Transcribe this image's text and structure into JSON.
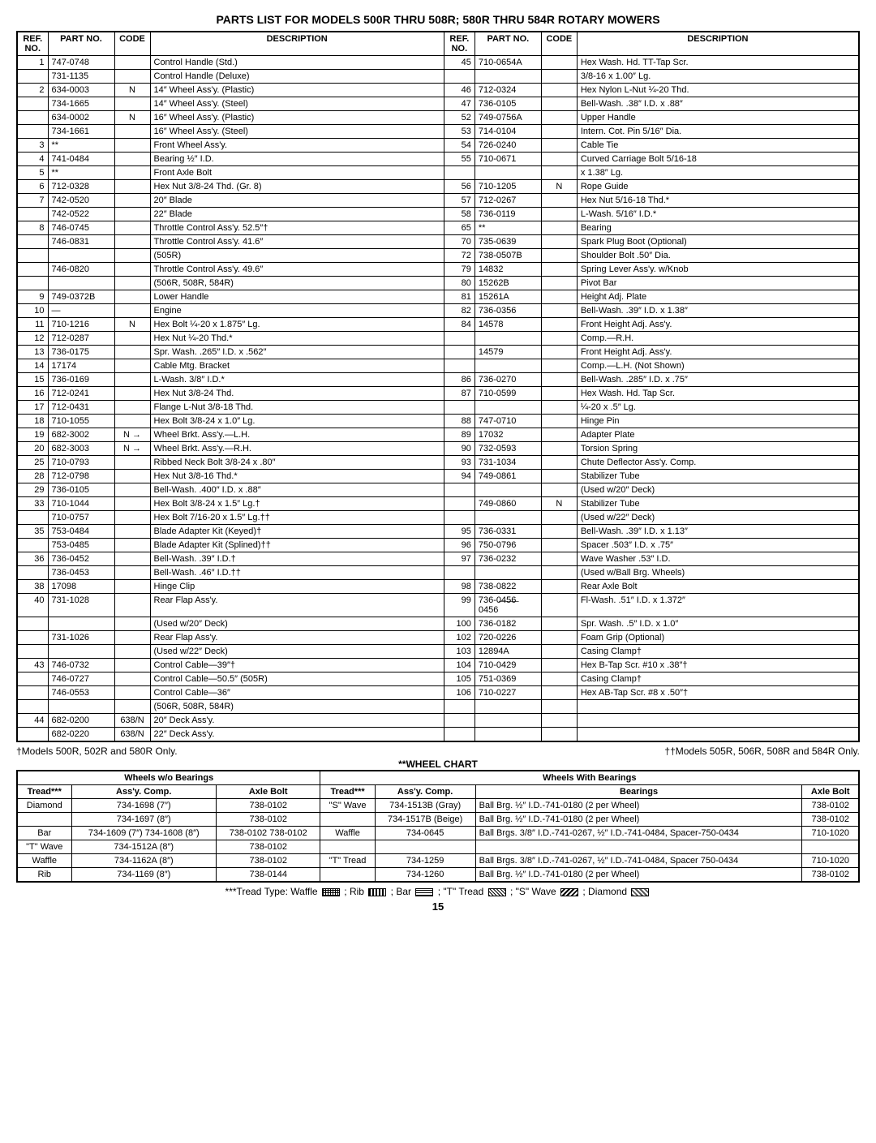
{
  "title": "PARTS LIST FOR MODELS 500R THRU 508R; 580R THRU 584R ROTARY MOWERS",
  "headers": {
    "ref": "REF. NO.",
    "part": "PART NO.",
    "code": "CODE",
    "desc": "DESCRIPTION"
  },
  "left_rows": [
    {
      "r": "1",
      "p": "747-0748",
      "c": "",
      "d": "Control Handle (Std.)"
    },
    {
      "r": "",
      "p": "731-1135",
      "c": "",
      "d": "Control Handle (Deluxe)"
    },
    {
      "r": "2",
      "p": "634-0003",
      "c": "N",
      "d": "14″ Wheel Ass'y. (Plastic)"
    },
    {
      "r": "",
      "p": "734-1665",
      "c": "",
      "d": "14″ Wheel Ass'y. (Steel)"
    },
    {
      "r": "",
      "p": "634-0002",
      "c": "N",
      "d": "16″ Wheel Ass'y. (Plastic)"
    },
    {
      "r": "",
      "p": "734-1661",
      "c": "",
      "d": "16″ Wheel Ass'y. (Steel)"
    },
    {
      "r": "3",
      "p": "**",
      "c": "",
      "d": "Front Wheel Ass'y."
    },
    {
      "r": "4",
      "p": "741-0484",
      "c": "",
      "d": "Bearing ½″ I.D."
    },
    {
      "r": "5",
      "p": "**",
      "c": "",
      "d": "Front Axle Bolt"
    },
    {
      "r": "6",
      "p": "712-0328",
      "c": "",
      "d": "Hex Nut 3/8-24 Thd. (Gr. 8)"
    },
    {
      "r": "7",
      "p": "742-0520",
      "c": "",
      "d": "20″ Blade"
    },
    {
      "r": "",
      "p": "742-0522",
      "c": "",
      "d": "22″ Blade"
    },
    {
      "r": "8",
      "p": "746-0745",
      "c": "",
      "d": "Throttle Control Ass'y. 52.5″†"
    },
    {
      "r": "",
      "p": "746-0831",
      "c": "",
      "d": "Throttle Control Ass'y. 41.6″"
    },
    {
      "r": "",
      "p": "",
      "c": "",
      "d": "(505R)"
    },
    {
      "r": "",
      "p": "746-0820",
      "c": "",
      "d": "Throttle Control Ass'y. 49.6″"
    },
    {
      "r": "",
      "p": "",
      "c": "",
      "d": "(506R, 508R, 584R)"
    },
    {
      "r": "9",
      "p": "749-0372B",
      "c": "",
      "d": "Lower Handle"
    },
    {
      "r": "10",
      "p": "—",
      "c": "",
      "d": "Engine"
    },
    {
      "r": "11",
      "p": "710-1216",
      "c": "N",
      "d": "Hex Bolt ¼-20 x 1.875″ Lg."
    },
    {
      "r": "12",
      "p": "712-0287",
      "c": "",
      "d": "Hex Nut ¼-20 Thd.*"
    },
    {
      "r": "13",
      "p": "736-0175",
      "c": "",
      "d": "Spr. Wash. .265″ I.D. x .562″"
    },
    {
      "r": "14",
      "p": "17174",
      "c": "",
      "d": "Cable Mtg. Bracket"
    },
    {
      "r": "15",
      "p": "736-0169",
      "c": "",
      "d": "L-Wash. 3/8″ I.D.*"
    },
    {
      "r": "16",
      "p": "712-0241",
      "c": "",
      "d": "Hex Nut 3/8-24 Thd."
    },
    {
      "r": "17",
      "p": "712-0431",
      "c": "",
      "d": "Flange L-Nut 3/8-18 Thd."
    },
    {
      "r": "18",
      "p": "710-1055",
      "c": "",
      "d": "Hex Bolt 3/8-24 x 1.0″ Lg."
    },
    {
      "r": "19",
      "p": "682-3002",
      "c": "N →",
      "d": "Wheel Brkt. Ass'y.—L.H."
    },
    {
      "r": "20",
      "p": "682-3003",
      "c": "N →",
      "d": "Wheel Brkt. Ass'y.—R.H."
    },
    {
      "r": "25",
      "p": "710-0793",
      "c": "",
      "d": "Ribbed Neck Bolt 3/8-24 x .80″"
    },
    {
      "r": "28",
      "p": "712-0798",
      "c": "",
      "d": "Hex Nut 3/8-16 Thd.*"
    },
    {
      "r": "29",
      "p": "736-0105",
      "c": "",
      "d": "Bell-Wash. .400″ I.D. x .88″"
    },
    {
      "r": "33",
      "p": "710-1044",
      "c": "",
      "d": "Hex Bolt 3/8-24 x 1.5″ Lg.†"
    },
    {
      "r": "",
      "p": "710-0757",
      "c": "",
      "d": "Hex Bolt 7/16-20 x 1.5″ Lg.††"
    },
    {
      "r": "35",
      "p": "753-0484",
      "c": "",
      "d": "Blade Adapter Kit (Keyed)†"
    },
    {
      "r": "",
      "p": "753-0485",
      "c": "",
      "d": "Blade Adapter Kit (Splined)††"
    },
    {
      "r": "36",
      "p": "736-0452",
      "c": "",
      "d": "Bell-Wash. .39″ I.D.†"
    },
    {
      "r": "",
      "p": "736-0453",
      "c": "",
      "d": "Bell-Wash. .46″ I.D.††"
    },
    {
      "r": "38",
      "p": "17098",
      "c": "",
      "d": "Hinge Clip"
    },
    {
      "r": "40",
      "p": "731-1028",
      "c": "",
      "d": "Rear Flap Ass'y."
    },
    {
      "r": "",
      "p": "",
      "c": "",
      "d": "(Used w/20″ Deck)"
    },
    {
      "r": "",
      "p": "731-1026",
      "c": "",
      "d": "Rear Flap Ass'y."
    },
    {
      "r": "",
      "p": "",
      "c": "",
      "d": "(Used w/22″ Deck)"
    },
    {
      "r": "43",
      "p": "746-0732",
      "c": "",
      "d": "Control Cable—39″†"
    },
    {
      "r": "",
      "p": "746-0727",
      "c": "",
      "d": "Control Cable—50.5″ (505R)"
    },
    {
      "r": "",
      "p": "746-0553",
      "c": "",
      "d": "Control Cable—36″"
    },
    {
      "r": "",
      "p": "",
      "c": "",
      "d": "(506R, 508R, 584R)"
    },
    {
      "r": "44",
      "p": "682-0200",
      "c": "638/N",
      "d": "20″ Deck Ass'y."
    },
    {
      "r": "",
      "p": "682-0220",
      "c": "638/N",
      "d": "22″ Deck Ass'y."
    }
  ],
  "right_rows": [
    {
      "r": "45",
      "p": "710-0654A",
      "c": "",
      "d": "Hex Wash. Hd. TT-Tap Scr."
    },
    {
      "r": "",
      "p": "",
      "c": "",
      "d": "3/8-16 x 1.00″ Lg."
    },
    {
      "r": "46",
      "p": "712-0324",
      "c": "",
      "d": "Hex Nylon L-Nut ¼-20 Thd."
    },
    {
      "r": "47",
      "p": "736-0105",
      "c": "",
      "d": "Bell-Wash. .38″ I.D. x .88″"
    },
    {
      "r": "52",
      "p": "749-0756A",
      "c": "",
      "d": "Upper Handle"
    },
    {
      "r": "53",
      "p": "714-0104",
      "c": "",
      "d": "Intern. Cot. Pin 5/16″ Dia."
    },
    {
      "r": "54",
      "p": "726-0240",
      "c": "",
      "d": "Cable Tie"
    },
    {
      "r": "55",
      "p": "710-0671",
      "c": "",
      "d": "Curved Carriage Bolt 5/16-18"
    },
    {
      "r": "",
      "p": "",
      "c": "",
      "d": "x 1.38″ Lg."
    },
    {
      "r": "56",
      "p": "710-1205",
      "c": "N",
      "d": "Rope Guide"
    },
    {
      "r": "57",
      "p": "712-0267",
      "c": "",
      "d": "Hex Nut 5/16-18 Thd.*"
    },
    {
      "r": "58",
      "p": "736-0119",
      "c": "",
      "d": "L-Wash. 5/16″ I.D.*"
    },
    {
      "r": "65",
      "p": "**",
      "c": "",
      "d": "Bearing"
    },
    {
      "r": "70",
      "p": "735-0639",
      "c": "",
      "d": "Spark Plug Boot (Optional)"
    },
    {
      "r": "72",
      "p": "738-0507B",
      "c": "",
      "d": "Shoulder Bolt .50″ Dia."
    },
    {
      "r": "79",
      "p": "14832",
      "c": "",
      "d": "Spring Lever Ass'y. w/Knob"
    },
    {
      "r": "80",
      "p": "15262B",
      "c": "",
      "d": "Pivot Bar"
    },
    {
      "r": "81",
      "p": "15261A",
      "c": "",
      "d": "Height Adj. Plate"
    },
    {
      "r": "82",
      "p": "736-0356",
      "c": "",
      "d": "Bell-Wash. .39″ I.D. x 1.38″"
    },
    {
      "r": "84",
      "p": "14578",
      "c": "",
      "d": "Front Height Adj. Ass'y."
    },
    {
      "r": "",
      "p": "",
      "c": "",
      "d": "Comp.—R.H."
    },
    {
      "r": "",
      "p": "14579",
      "c": "",
      "d": "Front Height Adj. Ass'y."
    },
    {
      "r": "",
      "p": "",
      "c": "",
      "d": "Comp.—L.H. (Not Shown)"
    },
    {
      "r": "86",
      "p": "736-0270",
      "c": "",
      "d": "Bell-Wash. .285″ I.D. x .75″"
    },
    {
      "r": "87",
      "p": "710-0599",
      "c": "",
      "d": "Hex Wash. Hd. Tap Scr."
    },
    {
      "r": "",
      "p": "",
      "c": "",
      "d": "¼-20 x .5″ Lg."
    },
    {
      "r": "88",
      "p": "747-0710",
      "c": "",
      "d": "Hinge Pin"
    },
    {
      "r": "89",
      "p": "17032",
      "c": "",
      "d": "Adapter Plate"
    },
    {
      "r": "90",
      "p": "732-0593",
      "c": "",
      "d": "Torsion Spring"
    },
    {
      "r": "93",
      "p": "731-1034",
      "c": "",
      "d": "Chute Deflector Ass'y. Comp."
    },
    {
      "r": "94",
      "p": "749-0861",
      "c": "",
      "d": "Stabilizer Tube"
    },
    {
      "r": "",
      "p": "",
      "c": "",
      "d": "(Used w/20″ Deck)"
    },
    {
      "r": "",
      "p": "749-0860",
      "c": "N",
      "d": "Stabilizer Tube"
    },
    {
      "r": "",
      "p": "",
      "c": "",
      "d": "(Used w/22″ Deck)"
    },
    {
      "r": "95",
      "p": "736-0331",
      "c": "",
      "d": "Bell-Wash. .39″ I.D. x 1.13″"
    },
    {
      "r": "96",
      "p": "750-0796",
      "c": "",
      "d": "Spacer .503″ I.D. x .75″"
    },
    {
      "r": "97",
      "p": "736-0232",
      "c": "",
      "d": "Wave Washer .53″ I.D."
    },
    {
      "r": "",
      "p": "",
      "c": "",
      "d": "(Used w/Ball Brg. Wheels)"
    },
    {
      "r": "98",
      "p": "738-0822",
      "c": "",
      "d": "Rear Axle Bolt"
    },
    {
      "r": "99",
      "p": "736-0̶4̶5̶6̶ 0456",
      "c": "",
      "d": "Fl-Wash. .51″ I.D. x 1.372″"
    },
    {
      "r": "100",
      "p": "736-0182",
      "c": "",
      "d": "Spr. Wash. .5″ I.D. x 1.0″"
    },
    {
      "r": "102",
      "p": "720-0226",
      "c": "",
      "d": "Foam Grip (Optional)"
    },
    {
      "r": "103",
      "p": "12894A",
      "c": "",
      "d": "Casing Clamp†"
    },
    {
      "r": "104",
      "p": "710-0429",
      "c": "",
      "d": "Hex B-Tap Scr. #10 x .38″†"
    },
    {
      "r": "105",
      "p": "751-0369",
      "c": "",
      "d": "Casing Clamp†"
    },
    {
      "r": "106",
      "p": "710-0227",
      "c": "",
      "d": "Hex AB-Tap Scr. #8 x .50″†"
    },
    {
      "r": "",
      "p": "",
      "c": "",
      "d": ""
    },
    {
      "r": "",
      "p": "",
      "c": "",
      "d": ""
    },
    {
      "r": "",
      "p": "",
      "c": "",
      "d": ""
    }
  ],
  "footer_left": "†Models 500R, 502R and 580R Only.",
  "footer_right": "††Models 505R, 506R, 508R and 584R Only.",
  "wheel_chart_title": "**WHEEL CHART",
  "wc": {
    "h1a": "Wheels w/o Bearings",
    "h1b": "Wheels With Bearings",
    "h2a": "Tread***",
    "h2b": "Ass'y. Comp.",
    "h2c": "Axle Bolt",
    "h2d": "Tread***",
    "h2e": "Ass'y. Comp.",
    "h2f": "Bearings",
    "h2g": "Axle Bolt",
    "r": [
      {
        "a": "Diamond",
        "b": "734-1698 (7″)",
        "c": "738-0102",
        "d": "\"S\" Wave",
        "e": "734-1513B (Gray)",
        "f": "Ball Brg. ½″ I.D.-741-0180 (2 per Wheel)",
        "g": "738-0102"
      },
      {
        "a": "",
        "b": "734-1697 (8″)",
        "c": "738-0102",
        "d": "",
        "e": "734-1517B (Beige)",
        "f": "Ball Brg. ½″ I.D.-741-0180 (2 per Wheel)",
        "g": "738-0102"
      },
      {
        "a": "Bar",
        "b": "734-1609 (7″) 734-1608 (8″)",
        "c": "738-0102 738-0102",
        "d": "Waffle",
        "e": "734-0645",
        "f": "Ball Brgs. 3/8″ I.D.-741-0267, ½″ I.D.-741-0484, Spacer-750-0434",
        "g": "710-1020"
      },
      {
        "a": "\"T\" Wave",
        "b": "734-1512A (8″)",
        "c": "738-0102",
        "d": "",
        "e": "",
        "f": "",
        "g": ""
      },
      {
        "a": "Waffle",
        "b": "734-1162A (8″)",
        "c": "738-0102",
        "d": "\"T\" Tread",
        "e": "734-1259",
        "f": "Ball Brgs. 3/8″ I.D.-741-0267, ½″ I.D.-741-0484, Spacer 750-0434",
        "g": "710-1020"
      },
      {
        "a": "Rib",
        "b": "734-1169 (8″)",
        "c": "738-0144",
        "d": "",
        "e": "734-1260",
        "f": "Ball Brg. ½″ I.D.-741-0180 (2 per Wheel)",
        "g": "738-0102"
      }
    ]
  },
  "tread_footer_pre": "***Tread Type: Waffle",
  "tread_footer_rib": "; Rib",
  "tread_footer_bar": "; Bar",
  "tread_footer_t": "; \"T\" Tread",
  "tread_footer_s": "; \"S\" Wave",
  "tread_footer_d": "; Diamond",
  "page_num": "15"
}
